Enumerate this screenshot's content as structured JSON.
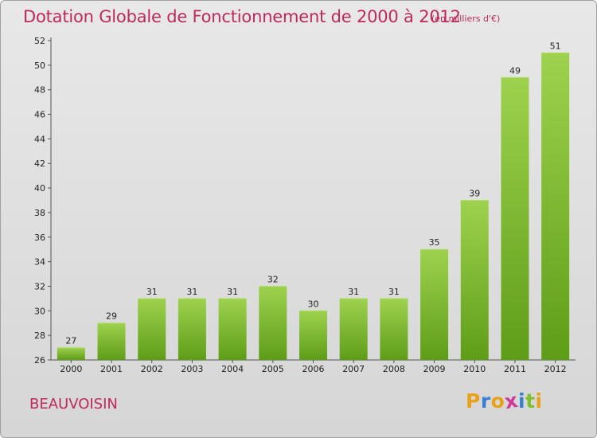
{
  "chart_data": {
    "type": "bar",
    "title": "Dotation Globale de Fonctionnement de 2000 à 2012",
    "subtitle": "(en milliers d'€)",
    "categories": [
      "2000",
      "2001",
      "2002",
      "2003",
      "2004",
      "2005",
      "2006",
      "2007",
      "2008",
      "2009",
      "2010",
      "2011",
      "2012"
    ],
    "values": [
      27,
      29,
      31,
      31,
      31,
      32,
      30,
      31,
      31,
      35,
      39,
      49,
      51
    ],
    "ylim": [
      26,
      52
    ],
    "yticks": [
      26,
      28,
      30,
      32,
      34,
      36,
      38,
      40,
      42,
      44,
      46,
      48,
      50,
      52
    ],
    "grid": false,
    "bar_color": "#7fbf2f"
  },
  "footer": {
    "commune": "BEAUVOISIN",
    "logo_letters": [
      "P",
      "r",
      "o",
      "x",
      "i",
      "t",
      "i"
    ],
    "logo_colors": [
      "#e8a21a",
      "#3a7fd0",
      "#e8a21a",
      "#d03a9a",
      "#3a7fd0",
      "#7fbf2f",
      "#e8a21a"
    ]
  }
}
